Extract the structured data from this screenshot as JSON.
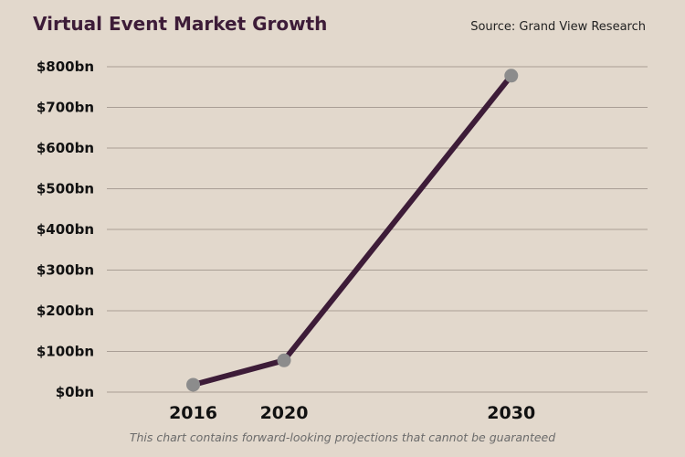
{
  "title": "Virtual Event Market Growth",
  "source": "Source: Grand View Research",
  "footnote": "This chart contains forward-looking projections that cannot be guaranteed",
  "colors": {
    "background": "#e2d8cc",
    "line": "#3d1c38",
    "marker": "#8c8c8c",
    "grid": "#a99e95"
  },
  "chart_data": {
    "type": "line",
    "title": "Virtual Event Market Growth",
    "xlabel": "",
    "ylabel": "",
    "x": [
      "2016",
      "2020",
      "2030"
    ],
    "x_numeric": [
      2016,
      2020,
      2030
    ],
    "series": [
      {
        "values": [
          18,
          78,
          778
        ]
      }
    ],
    "ylim": [
      0,
      800
    ],
    "y_ticks": [
      0,
      100,
      200,
      300,
      400,
      500,
      600,
      700,
      800
    ],
    "y_tick_labels": [
      "$0bn",
      "$100bn",
      "$200bn",
      "$300bn",
      "$400bn",
      "$500bn",
      "$600bn",
      "$700bn",
      "$800bn"
    ],
    "x_tick_labels": [
      "2016",
      "2020",
      "2030"
    ],
    "grid": true,
    "legend": "none"
  }
}
